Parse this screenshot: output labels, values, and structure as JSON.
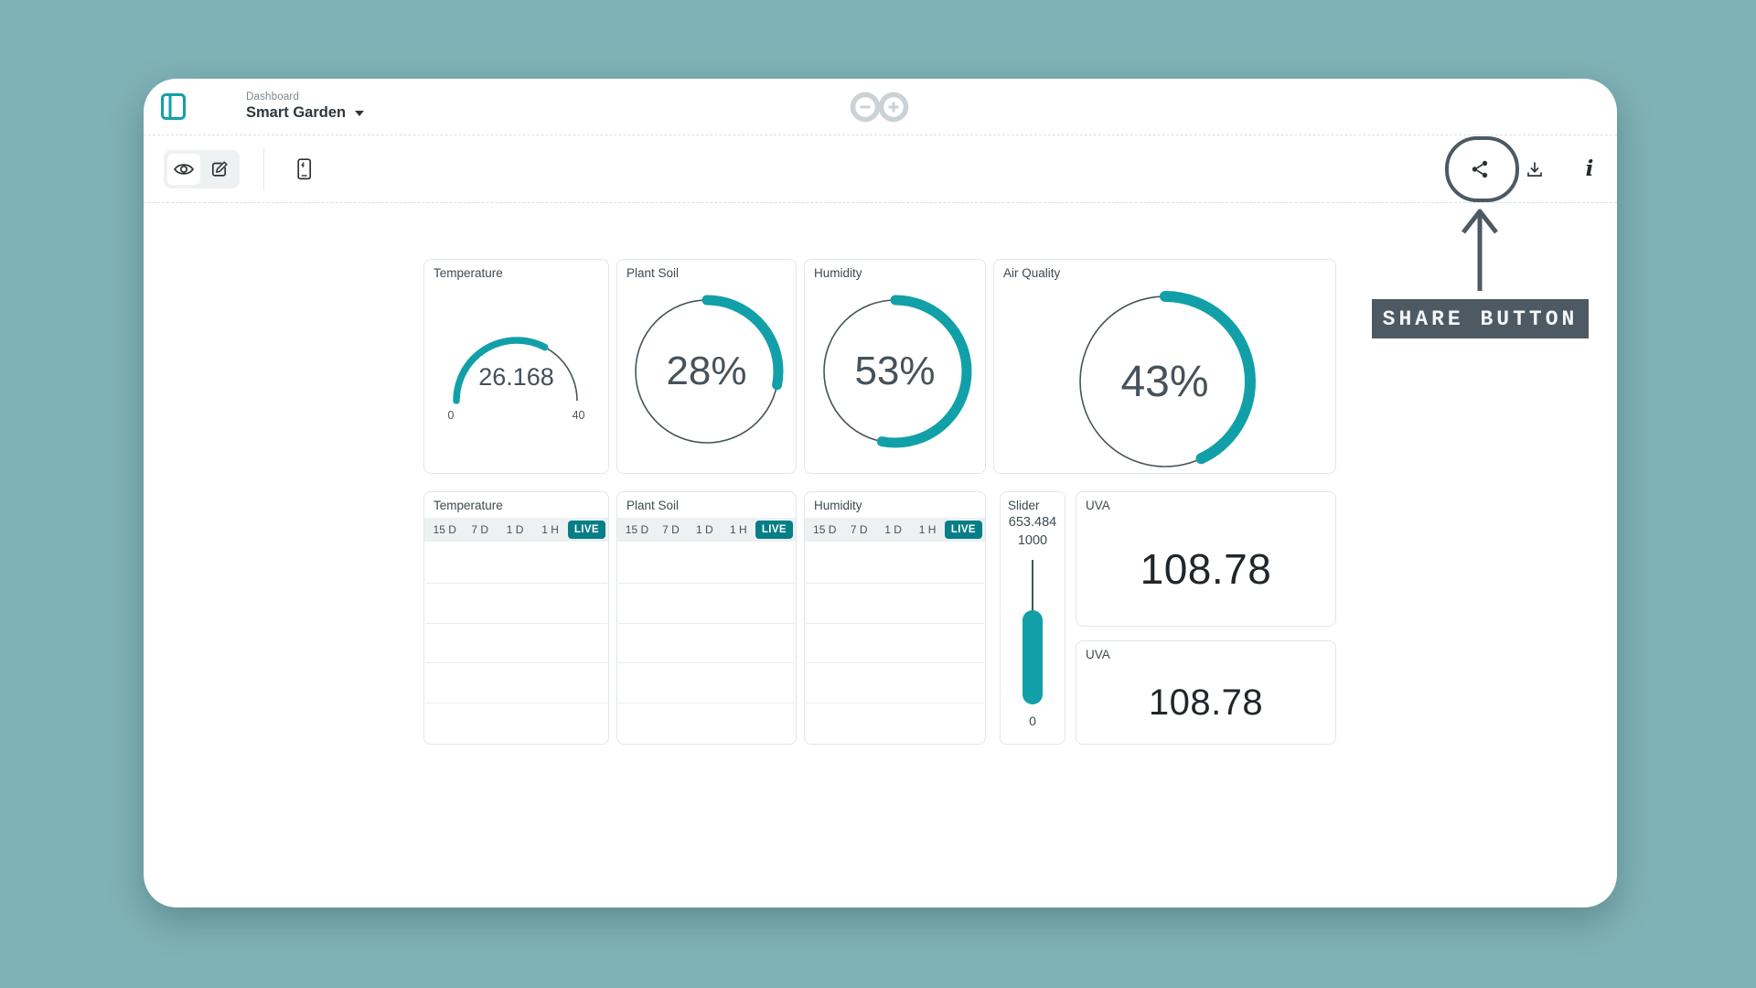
{
  "colors": {
    "background": "#7FB2B6",
    "accent": "#12A0A8",
    "live": "#067E87",
    "annotation": "#4D5A64"
  },
  "header": {
    "breadcrumb": "Dashboard",
    "title": "Smart Garden"
  },
  "widgets": {
    "gauge": {
      "title": "Temperature",
      "value": "26.168",
      "min": "0",
      "max": "40",
      "pct": 65.4
    },
    "rings": [
      {
        "title": "Plant Soil",
        "value": "28%",
        "pct": 28
      },
      {
        "title": "Humidity",
        "value": "53%",
        "pct": 53
      },
      {
        "title": "Air Quality",
        "value": "43%",
        "pct": 43
      }
    ],
    "charts": [
      {
        "title": "Temperature",
        "ranges": [
          "15 D",
          "7 D",
          "1 D",
          "1 H"
        ],
        "live": "LIVE"
      },
      {
        "title": "Plant Soil",
        "ranges": [
          "15 D",
          "7 D",
          "1 D",
          "1 H"
        ],
        "live": "LIVE"
      },
      {
        "title": "Humidity",
        "ranges": [
          "15 D",
          "7 D",
          "1 D",
          "1 H"
        ],
        "live": "LIVE"
      }
    ],
    "slider": {
      "title": "Slider",
      "value": "653.484",
      "max": "1000",
      "min": "0",
      "pct": 65.3
    },
    "values": [
      {
        "title": "UVA",
        "value": "108.78"
      },
      {
        "title": "UVA",
        "value": "108.78"
      }
    ]
  },
  "annotation": {
    "label": "SHARE BUTTON"
  }
}
